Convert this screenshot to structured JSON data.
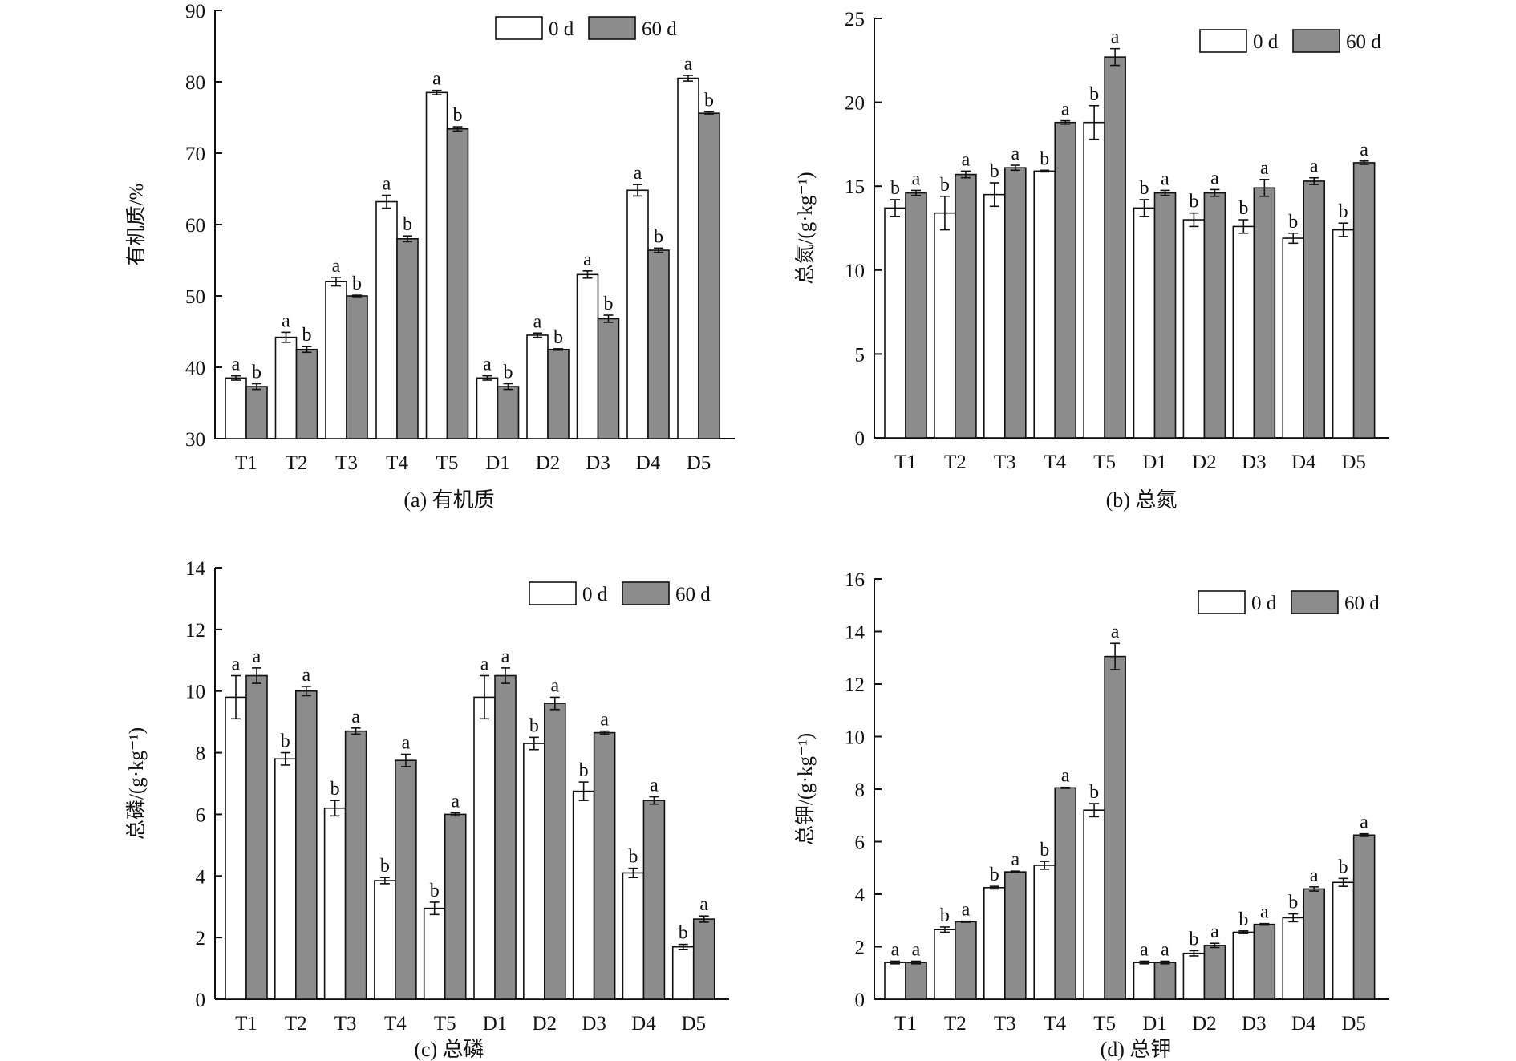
{
  "colors": {
    "bar_0d": "#ffffff",
    "bar_60d": "#8c8c8c",
    "stroke": "#111111"
  },
  "legend": {
    "labels": [
      "0 d",
      "60 d"
    ]
  },
  "chart_data": [
    {
      "type": "bar",
      "caption": "(a) 有机质",
      "ylabel": "有机质/%",
      "ylim": [
        30,
        90
      ],
      "yticks": [
        "30",
        "40",
        "50",
        "60",
        "70",
        "80",
        "90"
      ],
      "categories": [
        "T1",
        "T2",
        "T3",
        "T4",
        "T5",
        "D1",
        "D2",
        "D3",
        "D4",
        "D5"
      ],
      "series": [
        {
          "name": "0 d",
          "values": [
            38.5,
            44.2,
            52.0,
            63.2,
            78.5,
            38.5,
            44.5,
            53.0,
            64.8,
            80.5
          ],
          "errors": [
            0.3,
            0.7,
            0.6,
            0.9,
            0.3,
            0.3,
            0.3,
            0.5,
            0.8,
            0.4
          ],
          "labels": [
            "a",
            "a",
            "a",
            "a",
            "a",
            "a",
            "a",
            "a",
            "a",
            "a"
          ]
        },
        {
          "name": "60 d",
          "values": [
            37.3,
            42.5,
            50.0,
            58.0,
            73.4,
            37.3,
            42.5,
            46.8,
            56.4,
            75.6
          ],
          "errors": [
            0.4,
            0.4,
            0.1,
            0.4,
            0.3,
            0.4,
            0.1,
            0.5,
            0.3,
            0.2
          ],
          "labels": [
            "b",
            "b",
            "b",
            "b",
            "b",
            "b",
            "b",
            "b",
            "b",
            "b"
          ]
        }
      ],
      "legend_position": "top-right"
    },
    {
      "type": "bar",
      "caption": "(b) 总氮",
      "ylabel": "总氮/(g·kg⁻¹)",
      "ylim": [
        0,
        25
      ],
      "yticks": [
        "0",
        "5",
        "10",
        "15",
        "20",
        "25"
      ],
      "categories": [
        "T1",
        "T2",
        "T3",
        "T4",
        "T5",
        "D1",
        "D2",
        "D3",
        "D4",
        "D5"
      ],
      "series": [
        {
          "name": "0 d",
          "values": [
            13.7,
            13.4,
            14.5,
            15.9,
            18.8,
            13.7,
            13.0,
            12.6,
            11.9,
            12.4
          ],
          "errors": [
            0.5,
            1.0,
            0.7,
            0.05,
            1.0,
            0.5,
            0.4,
            0.4,
            0.3,
            0.4
          ],
          "labels": [
            "b",
            "b",
            "b",
            "b",
            "b",
            "b",
            "b",
            "b",
            "b",
            "b"
          ]
        },
        {
          "name": "60 d",
          "values": [
            14.6,
            15.7,
            16.1,
            18.8,
            22.7,
            14.6,
            14.6,
            14.9,
            15.3,
            16.4
          ],
          "errors": [
            0.15,
            0.2,
            0.15,
            0.1,
            0.5,
            0.15,
            0.2,
            0.5,
            0.2,
            0.1
          ],
          "labels": [
            "a",
            "a",
            "a",
            "a",
            "a",
            "a",
            "a",
            "a",
            "a",
            "a"
          ]
        }
      ],
      "legend_position": "top-right"
    },
    {
      "type": "bar",
      "caption": "(c) 总磷",
      "ylabel": "总磷/(g·kg⁻¹)",
      "ylim": [
        0,
        14
      ],
      "yticks": [
        "0",
        "2",
        "4",
        "6",
        "8",
        "10",
        "12",
        "14"
      ],
      "categories": [
        "T1",
        "T2",
        "T3",
        "T4",
        "T5",
        "D1",
        "D2",
        "D3",
        "D4",
        "D5"
      ],
      "series": [
        {
          "name": "0 d",
          "values": [
            9.8,
            7.8,
            6.2,
            3.85,
            2.95,
            9.8,
            8.3,
            6.75,
            4.1,
            1.7
          ],
          "errors": [
            0.7,
            0.2,
            0.25,
            0.1,
            0.2,
            0.7,
            0.2,
            0.3,
            0.15,
            0.08
          ],
          "labels": [
            "a",
            "b",
            "b",
            "b",
            "b",
            "a",
            "b",
            "b",
            "b",
            "b"
          ]
        },
        {
          "name": "60 d",
          "values": [
            10.5,
            10.0,
            8.7,
            7.75,
            6.0,
            10.5,
            9.6,
            8.65,
            6.45,
            2.6
          ],
          "errors": [
            0.25,
            0.15,
            0.1,
            0.2,
            0.05,
            0.25,
            0.2,
            0.05,
            0.12,
            0.1
          ],
          "labels": [
            "a",
            "a",
            "a",
            "a",
            "a",
            "a",
            "a",
            "a",
            "a",
            "a"
          ]
        }
      ],
      "legend_position": "top-right"
    },
    {
      "type": "bar",
      "caption": "(d) 总钾",
      "ylabel": "总钾/(g·kg⁻¹)",
      "ylim": [
        0,
        16
      ],
      "yticks": [
        "0",
        "2",
        "4",
        "6",
        "8",
        "10",
        "12",
        "14",
        "16"
      ],
      "categories": [
        "T1",
        "T2",
        "T3",
        "T4",
        "T5",
        "D1",
        "D2",
        "D3",
        "D4",
        "D5"
      ],
      "series": [
        {
          "name": "0 d",
          "values": [
            1.4,
            2.65,
            4.25,
            5.1,
            7.2,
            1.4,
            1.75,
            2.55,
            3.1,
            4.45
          ],
          "errors": [
            0.05,
            0.1,
            0.05,
            0.15,
            0.25,
            0.05,
            0.1,
            0.05,
            0.15,
            0.15
          ],
          "labels": [
            "a",
            "b",
            "b",
            "b",
            "b",
            "a",
            "b",
            "b",
            "b",
            "b"
          ]
        },
        {
          "name": "60 d",
          "values": [
            1.4,
            2.95,
            4.85,
            8.05,
            13.05,
            1.4,
            2.05,
            2.85,
            4.2,
            6.25
          ],
          "errors": [
            0.05,
            0.02,
            0.03,
            0.02,
            0.5,
            0.05,
            0.08,
            0.03,
            0.08,
            0.05
          ],
          "labels": [
            "a",
            "a",
            "a",
            "a",
            "a",
            "a",
            "a",
            "a",
            "a",
            "a"
          ]
        }
      ],
      "legend_position": "top-right"
    }
  ]
}
